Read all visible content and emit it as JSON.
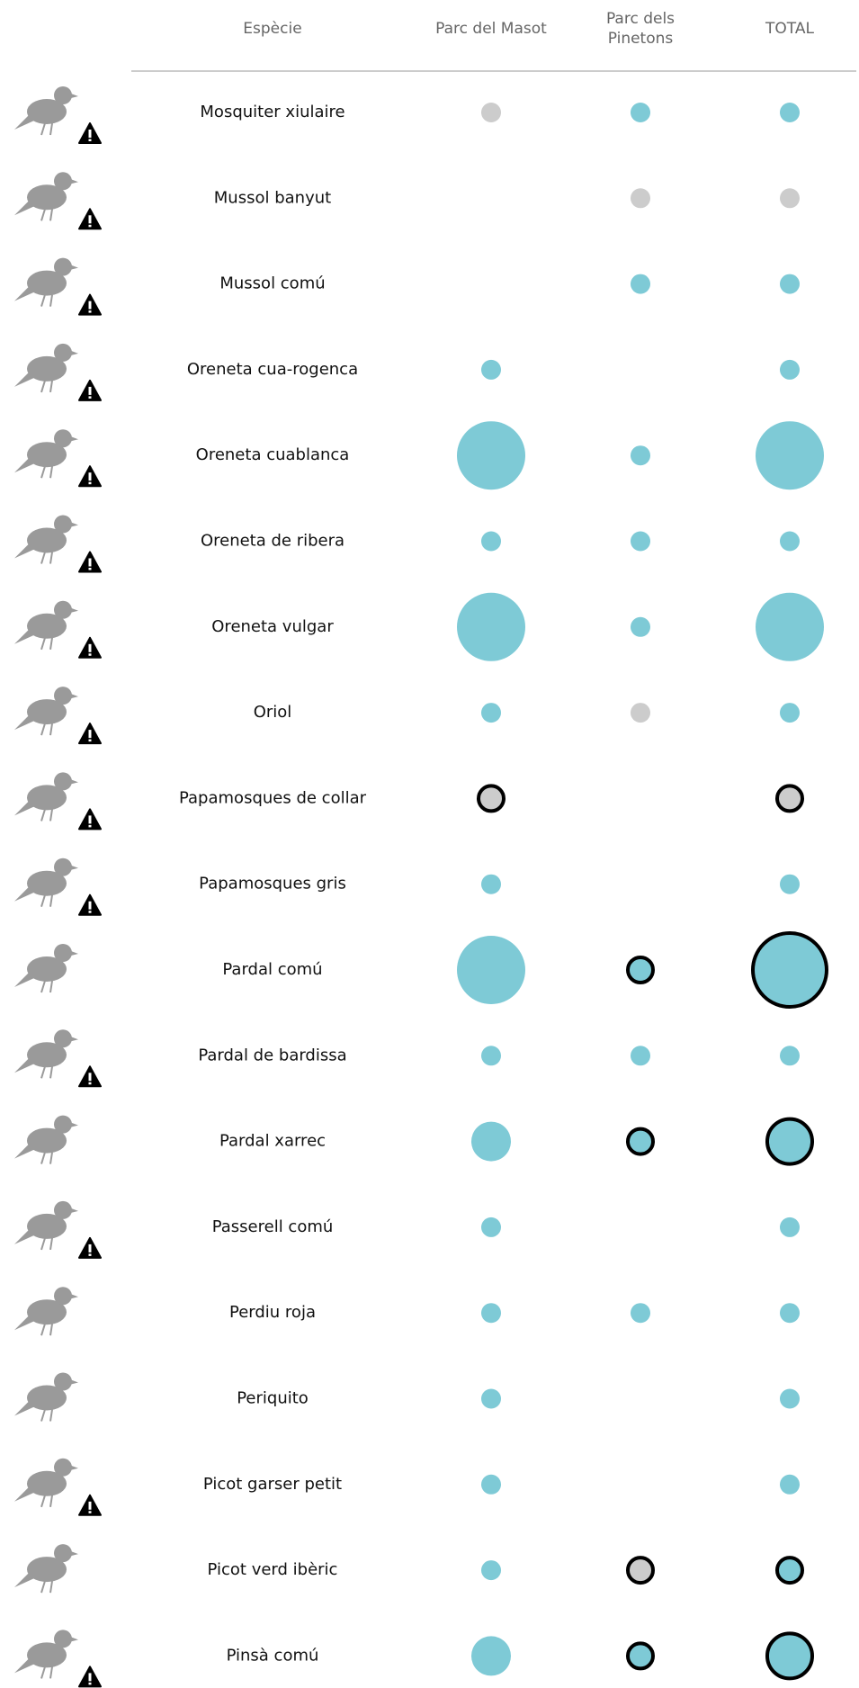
{
  "header": {
    "columns": [
      "Espècie",
      "Parc del Masot",
      "Parc dels\nPinetons",
      "TOTAL"
    ]
  },
  "styles": {
    "blue": "#7ecad6",
    "grey": "#cccccc",
    "sizes": {
      "small": 11,
      "medium": 22,
      "large": 38
    }
  },
  "rows": [
    {
      "name": "Mosquiter xiulaire",
      "warning": true,
      "cells": [
        {
          "color": "grey",
          "size": "small",
          "ring": false
        },
        {
          "color": "blue",
          "size": "small",
          "ring": false
        },
        {
          "color": "blue",
          "size": "small",
          "ring": false
        }
      ]
    },
    {
      "name": "Mussol banyut",
      "warning": true,
      "cells": [
        null,
        {
          "color": "grey",
          "size": "small",
          "ring": false
        },
        {
          "color": "grey",
          "size": "small",
          "ring": false
        }
      ]
    },
    {
      "name": "Mussol comú",
      "warning": true,
      "cells": [
        null,
        {
          "color": "blue",
          "size": "small",
          "ring": false
        },
        {
          "color": "blue",
          "size": "small",
          "ring": false
        }
      ]
    },
    {
      "name": "Oreneta cua-rogenca",
      "warning": true,
      "cells": [
        {
          "color": "blue",
          "size": "small",
          "ring": false
        },
        null,
        {
          "color": "blue",
          "size": "small",
          "ring": false
        }
      ]
    },
    {
      "name": "Oreneta cuablanca",
      "warning": true,
      "cells": [
        {
          "color": "blue",
          "size": "large",
          "ring": false
        },
        {
          "color": "blue",
          "size": "small",
          "ring": false
        },
        {
          "color": "blue",
          "size": "large",
          "ring": false
        }
      ]
    },
    {
      "name": "Oreneta de ribera",
      "warning": true,
      "cells": [
        {
          "color": "blue",
          "size": "small",
          "ring": false
        },
        {
          "color": "blue",
          "size": "small",
          "ring": false
        },
        {
          "color": "blue",
          "size": "small",
          "ring": false
        }
      ]
    },
    {
      "name": "Oreneta vulgar",
      "warning": true,
      "cells": [
        {
          "color": "blue",
          "size": "large",
          "ring": false
        },
        {
          "color": "blue",
          "size": "small",
          "ring": false
        },
        {
          "color": "blue",
          "size": "large",
          "ring": false
        }
      ]
    },
    {
      "name": "Oriol",
      "warning": true,
      "cells": [
        {
          "color": "blue",
          "size": "small",
          "ring": false
        },
        {
          "color": "grey",
          "size": "small",
          "ring": false
        },
        {
          "color": "blue",
          "size": "small",
          "ring": false
        }
      ]
    },
    {
      "name": "Papamosques de collar",
      "warning": true,
      "cells": [
        {
          "color": "grey",
          "size": "small",
          "ring": true
        },
        null,
        {
          "color": "grey",
          "size": "small",
          "ring": true
        }
      ]
    },
    {
      "name": "Papamosques gris",
      "warning": true,
      "cells": [
        {
          "color": "blue",
          "size": "small",
          "ring": false
        },
        null,
        {
          "color": "blue",
          "size": "small",
          "ring": false
        }
      ]
    },
    {
      "name": "Pardal comú",
      "warning": false,
      "cells": [
        {
          "color": "blue",
          "size": "large",
          "ring": false
        },
        {
          "color": "blue",
          "size": "small",
          "ring": true
        },
        {
          "color": "blue",
          "size": "large",
          "ring": true
        }
      ]
    },
    {
      "name": "Pardal de bardissa",
      "warning": true,
      "cells": [
        {
          "color": "blue",
          "size": "small",
          "ring": false
        },
        {
          "color": "blue",
          "size": "small",
          "ring": false
        },
        {
          "color": "blue",
          "size": "small",
          "ring": false
        }
      ]
    },
    {
      "name": "Pardal xarrec",
      "warning": false,
      "cells": [
        {
          "color": "blue",
          "size": "medium",
          "ring": false
        },
        {
          "color": "blue",
          "size": "small",
          "ring": true
        },
        {
          "color": "blue",
          "size": "medium",
          "ring": true
        }
      ]
    },
    {
      "name": "Passerell comú",
      "warning": true,
      "cells": [
        {
          "color": "blue",
          "size": "small",
          "ring": false
        },
        null,
        {
          "color": "blue",
          "size": "small",
          "ring": false
        }
      ]
    },
    {
      "name": "Perdiu roja",
      "warning": false,
      "cells": [
        {
          "color": "blue",
          "size": "small",
          "ring": false
        },
        {
          "color": "blue",
          "size": "small",
          "ring": false
        },
        {
          "color": "blue",
          "size": "small",
          "ring": false
        }
      ]
    },
    {
      "name": "Periquito",
      "warning": false,
      "cells": [
        {
          "color": "blue",
          "size": "small",
          "ring": false
        },
        null,
        {
          "color": "blue",
          "size": "small",
          "ring": false
        }
      ]
    },
    {
      "name": "Picot garser petit",
      "warning": true,
      "cells": [
        {
          "color": "blue",
          "size": "small",
          "ring": false
        },
        null,
        {
          "color": "blue",
          "size": "small",
          "ring": false
        }
      ]
    },
    {
      "name": "Picot verd ibèric",
      "warning": false,
      "cells": [
        {
          "color": "blue",
          "size": "small",
          "ring": false
        },
        {
          "color": "grey",
          "size": "small",
          "ring": true
        },
        {
          "color": "blue",
          "size": "small",
          "ring": true
        }
      ]
    },
    {
      "name": "Pinsà comú",
      "warning": true,
      "cells": [
        {
          "color": "blue",
          "size": "medium",
          "ring": false
        },
        {
          "color": "blue",
          "size": "small",
          "ring": true
        },
        {
          "color": "blue",
          "size": "medium",
          "ring": true
        }
      ]
    }
  ]
}
